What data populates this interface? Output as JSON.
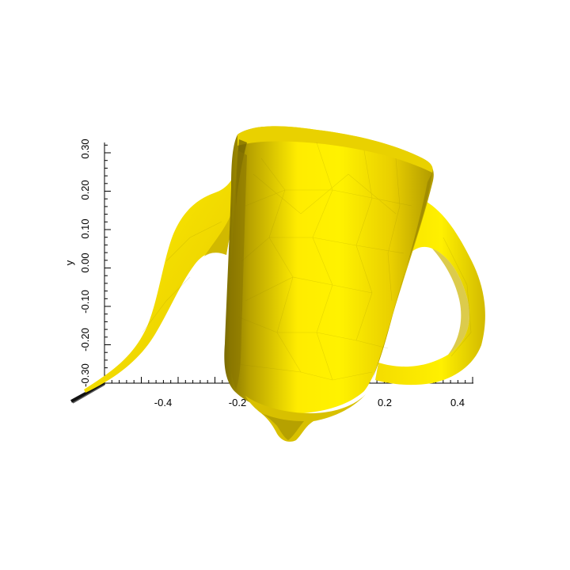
{
  "figure": {
    "object": "teapot-mesh",
    "colors": {
      "background": "#ffffff",
      "mesh_base": "#f2dc00",
      "mesh_light": "#fff000",
      "mesh_shadow": "#a89400",
      "mesh_dark": "#6e6000",
      "axis": "#000000"
    }
  },
  "axes": {
    "x": {
      "tick_labels": [
        "-0.4",
        "-0.2",
        "0.2",
        "0.4"
      ]
    },
    "y": {
      "label": "y",
      "tick_labels": [
        "0.30",
        "0.20",
        "0.10",
        "0.00",
        "-0.10",
        "-0.20",
        "-0.30"
      ]
    }
  }
}
